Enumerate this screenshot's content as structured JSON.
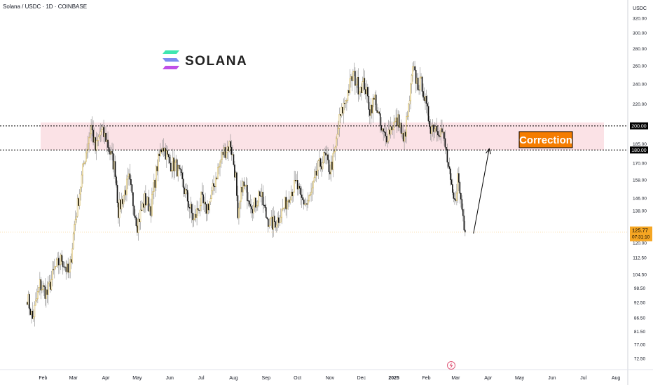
{
  "header": {
    "title": "Solana / USDC · 1D · COINBASE"
  },
  "logo": {
    "text": "SOLANA",
    "colors": [
      "#00FFA3",
      "#03E1FF",
      "#DC1FFF"
    ]
  },
  "price_scale": {
    "currency": "USDC"
  },
  "price_tag": {
    "price": "125.77",
    "countdown": "07:31:10",
    "color": "#F5A623"
  },
  "lines": {
    "upper": {
      "label": "200.00",
      "value": 200
    },
    "lower": {
      "label": "180.00",
      "value": 180
    }
  },
  "annotation": {
    "text": "Correction",
    "color": "#F57C00"
  },
  "footer": {
    "icon": "lightning-icon"
  },
  "colors": {
    "up": "#FFFFFF",
    "down": "#000000",
    "wick": "#8a8a8a",
    "zone": "#FBE2E6"
  },
  "chart_data": {
    "type": "candlestick",
    "title": "Solana / USDC · 1D · COINBASE",
    "y_scale": "log",
    "ylim": [
      69,
      332
    ],
    "yticks": [
      72.5,
      77,
      81.5,
      86.5,
      92.5,
      98.5,
      104.5,
      112.5,
      120,
      128,
      138,
      146,
      158,
      170,
      180,
      185,
      200,
      220,
      240,
      260,
      280,
      300,
      320
    ],
    "ytick_labels": [
      "72.50",
      "77.00",
      "81.50",
      "86.50",
      "92.50",
      "98.50",
      "104.50",
      "112.50",
      "120.00",
      "128.00",
      "138.00",
      "146.00",
      "158.00",
      "170.00",
      "180.00",
      "185.00",
      "200.00",
      "220.00",
      "240.00",
      "260.00",
      "280.00",
      "300.00",
      "320.00"
    ],
    "xticks": [
      "Feb",
      "Mar",
      "Apr",
      "May",
      "Jun",
      "Jul",
      "Aug",
      "Sep",
      "Oct",
      "Nov",
      "Dec",
      "2025",
      "Feb",
      "Mar",
      "Apr",
      "May",
      "Jun",
      "Jul",
      "Aug"
    ],
    "first_date": "2024-01-17",
    "last_date": "2025-03-10",
    "keypoints": [
      [
        "2024-01-17",
        95
      ],
      [
        "2024-01-22",
        86
      ],
      [
        "2024-01-29",
        100
      ],
      [
        "2024-02-05",
        96
      ],
      [
        "2024-02-12",
        107
      ],
      [
        "2024-02-19",
        112
      ],
      [
        "2024-02-26",
        104
      ],
      [
        "2024-03-02",
        130
      ],
      [
        "2024-03-07",
        150
      ],
      [
        "2024-03-12",
        175
      ],
      [
        "2024-03-18",
        200
      ],
      [
        "2024-03-22",
        180
      ],
      [
        "2024-03-27",
        195
      ],
      [
        "2024-04-01",
        190
      ],
      [
        "2024-04-05",
        178
      ],
      [
        "2024-04-10",
        165
      ],
      [
        "2024-04-13",
        138
      ],
      [
        "2024-04-18",
        148
      ],
      [
        "2024-04-23",
        158
      ],
      [
        "2024-05-01",
        130
      ],
      [
        "2024-05-08",
        145
      ],
      [
        "2024-05-14",
        140
      ],
      [
        "2024-05-20",
        168
      ],
      [
        "2024-05-25",
        185
      ],
      [
        "2024-06-01",
        170
      ],
      [
        "2024-06-07",
        168
      ],
      [
        "2024-06-12",
        158
      ],
      [
        "2024-06-18",
        145
      ],
      [
        "2024-06-24",
        132
      ],
      [
        "2024-07-01",
        145
      ],
      [
        "2024-07-05",
        138
      ],
      [
        "2024-07-10",
        145
      ],
      [
        "2024-07-15",
        160
      ],
      [
        "2024-07-22",
        178
      ],
      [
        "2024-07-29",
        185
      ],
      [
        "2024-08-03",
        160
      ],
      [
        "2024-08-05",
        130
      ],
      [
        "2024-08-09",
        155
      ],
      [
        "2024-08-15",
        148
      ],
      [
        "2024-08-20",
        140
      ],
      [
        "2024-08-26",
        150
      ],
      [
        "2024-09-01",
        135
      ],
      [
        "2024-09-06",
        130
      ],
      [
        "2024-09-12",
        133
      ],
      [
        "2024-09-18",
        140
      ],
      [
        "2024-09-24",
        150
      ],
      [
        "2024-09-30",
        155
      ],
      [
        "2024-10-04",
        145
      ],
      [
        "2024-10-10",
        142
      ],
      [
        "2024-10-15",
        150
      ],
      [
        "2024-10-20",
        165
      ],
      [
        "2024-10-27",
        175
      ],
      [
        "2024-11-01",
        165
      ],
      [
        "2024-11-05",
        175
      ],
      [
        "2024-11-10",
        205
      ],
      [
        "2024-11-16",
        225
      ],
      [
        "2024-11-23",
        250
      ],
      [
        "2024-11-28",
        238
      ],
      [
        "2024-12-04",
        240
      ],
      [
        "2024-12-09",
        215
      ],
      [
        "2024-12-14",
        225
      ],
      [
        "2024-12-20",
        195
      ],
      [
        "2024-12-24",
        190
      ],
      [
        "2024-12-30",
        200
      ],
      [
        "2025-01-06",
        205
      ],
      [
        "2025-01-10",
        185
      ],
      [
        "2025-01-15",
        215
      ],
      [
        "2025-01-19",
        255
      ],
      [
        "2025-01-24",
        240
      ],
      [
        "2025-01-28",
        240
      ],
      [
        "2025-02-01",
        215
      ],
      [
        "2025-02-05",
        200
      ],
      [
        "2025-02-10",
        200
      ],
      [
        "2025-02-16",
        195
      ],
      [
        "2025-02-20",
        178
      ],
      [
        "2025-02-25",
        150
      ],
      [
        "2025-02-28",
        142
      ],
      [
        "2025-03-03",
        160
      ],
      [
        "2025-03-07",
        140
      ],
      [
        "2025-03-10",
        125.77
      ]
    ],
    "last_price": 125.77,
    "horizontal_lines": [
      200,
      180
    ],
    "resistance_zone": [
      180,
      203
    ],
    "annotation": {
      "text": "Correction",
      "y": 190
    },
    "arrow": {
      "from": [
        "2025-03-18",
        125
      ],
      "to": [
        "2025-04-02",
        181
      ]
    },
    "grid": false,
    "legend": "none"
  }
}
